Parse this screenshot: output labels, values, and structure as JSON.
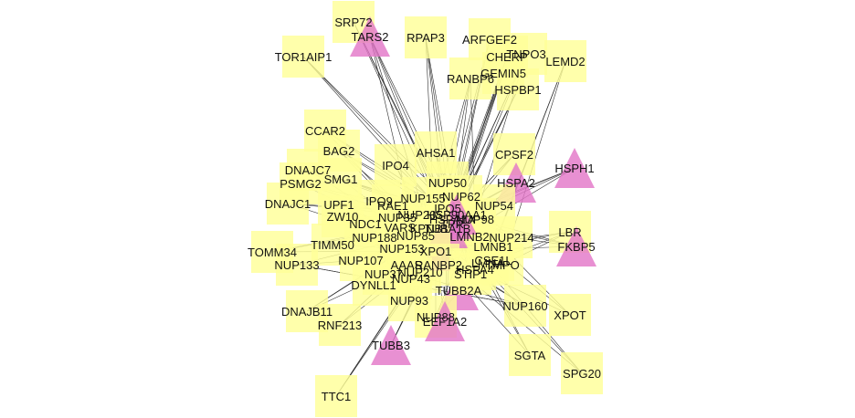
{
  "colors": {
    "background": "#ffffff",
    "node_square": "#ffff99",
    "node_triangle": "#e378c8",
    "edge": "#2b2b2b",
    "label": "#111111"
  },
  "nodes": [
    {
      "id": "SRP72",
      "shape": "square"
    },
    {
      "id": "TARS2",
      "shape": "triangle"
    },
    {
      "id": "RPAP3",
      "shape": "square"
    },
    {
      "id": "ARFGEF2",
      "shape": "square"
    },
    {
      "id": "TNPO3",
      "shape": "square"
    },
    {
      "id": "LEMD2",
      "shape": "square"
    },
    {
      "id": "CHERP",
      "shape": "square"
    },
    {
      "id": "GEMIN5",
      "shape": "square"
    },
    {
      "id": "TOR1AIP1",
      "shape": "square"
    },
    {
      "id": "RANBP6",
      "shape": "square"
    },
    {
      "id": "HSPBP1",
      "shape": "square"
    },
    {
      "id": "CCAR2",
      "shape": "square"
    },
    {
      "id": "BAG2",
      "shape": "square"
    },
    {
      "id": "AHSA1",
      "shape": "square"
    },
    {
      "id": "CPSF2",
      "shape": "square"
    },
    {
      "id": "HSPH1",
      "shape": "triangle"
    },
    {
      "id": "DNAJC7",
      "shape": "square"
    },
    {
      "id": "IPO4",
      "shape": "square"
    },
    {
      "id": "SMG1",
      "shape": "square"
    },
    {
      "id": "PSMG2",
      "shape": "square"
    },
    {
      "id": "HSPA2",
      "shape": "triangle"
    },
    {
      "id": "NUP155",
      "shape": "square"
    },
    {
      "id": "NUP54",
      "shape": "square"
    },
    {
      "id": "DNAJC1",
      "shape": "square"
    },
    {
      "id": "ZW10",
      "shape": "square"
    },
    {
      "id": "UPF1",
      "shape": "square"
    },
    {
      "id": "VARS",
      "shape": "triangle"
    },
    {
      "id": "LBR",
      "shape": "square"
    },
    {
      "id": "FKBP5",
      "shape": "triangle"
    },
    {
      "id": "TIMM50",
      "shape": "square"
    },
    {
      "id": "LMNB2",
      "shape": "square"
    },
    {
      "id": "NUP153",
      "shape": "square"
    },
    {
      "id": "TOMM34",
      "shape": "square"
    },
    {
      "id": "NUP133",
      "shape": "square"
    },
    {
      "id": "LMNA",
      "shape": "square"
    },
    {
      "id": "NUP210",
      "shape": "square"
    },
    {
      "id": "DYNLL1",
      "shape": "square"
    },
    {
      "id": "TUBB2A",
      "shape": "triangle"
    },
    {
      "id": "NUP93",
      "shape": "square"
    },
    {
      "id": "NUP160",
      "shape": "square"
    },
    {
      "id": "XPOT",
      "shape": "square"
    },
    {
      "id": "DNAJB11",
      "shape": "square"
    },
    {
      "id": "NUP88",
      "shape": "square"
    },
    {
      "id": "EEF1A2",
      "shape": "triangle"
    },
    {
      "id": "RNF213",
      "shape": "square"
    },
    {
      "id": "TUBB3",
      "shape": "triangle"
    },
    {
      "id": "SGTA",
      "shape": "square"
    },
    {
      "id": "SPG20",
      "shape": "square"
    },
    {
      "id": "TTC1",
      "shape": "square"
    },
    {
      "id": "XPO1",
      "shape": "triangle"
    },
    {
      "id": "NUP85",
      "shape": "square"
    },
    {
      "id": "NUP214",
      "shape": "square"
    },
    {
      "id": "NUP35",
      "shape": "square"
    },
    {
      "id": "NUP205",
      "shape": "square"
    },
    {
      "id": "NUP50",
      "shape": "square"
    },
    {
      "id": "NUP188",
      "shape": "square"
    },
    {
      "id": "NUP107",
      "shape": "square"
    },
    {
      "id": "NUP43",
      "shape": "square"
    },
    {
      "id": "NUP62",
      "shape": "square"
    },
    {
      "id": "NUP98",
      "shape": "square"
    },
    {
      "id": "TPR",
      "shape": "square"
    },
    {
      "id": "RAE1",
      "shape": "square"
    },
    {
      "id": "IPO9",
      "shape": "square"
    },
    {
      "id": "IPO5",
      "shape": "square"
    },
    {
      "id": "LMNB1",
      "shape": "square"
    },
    {
      "id": "HSPA4",
      "shape": "square"
    },
    {
      "id": "TUBA1B",
      "shape": "triangle"
    },
    {
      "id": "HSP90AA1",
      "shape": "triangle"
    },
    {
      "id": "HSPA1A",
      "shape": "triangle"
    },
    {
      "id": "STIP1",
      "shape": "square"
    },
    {
      "id": "TMPO",
      "shape": "square"
    },
    {
      "id": "KPNB1",
      "shape": "square"
    },
    {
      "id": "RANBP2",
      "shape": "square"
    },
    {
      "id": "AAAS",
      "shape": "square"
    },
    {
      "id": "NUP37",
      "shape": "square"
    },
    {
      "id": "NDC1",
      "shape": "square"
    },
    {
      "id": "CSE1L",
      "shape": "square"
    }
  ],
  "edges": [
    [
      "SRP72",
      "HSPA4"
    ],
    [
      "SRP72",
      "TUBA1B"
    ],
    [
      "SRP72",
      "HSPA1A"
    ],
    [
      "TARS2",
      "HSPA1A"
    ],
    [
      "TARS2",
      "NUP85"
    ],
    [
      "TARS2",
      "XPO1"
    ],
    [
      "TARS2",
      "HSP90AA1"
    ],
    [
      "TARS2",
      "TUBA1B"
    ],
    [
      "RPAP3",
      "HSP90AA1"
    ],
    [
      "RPAP3",
      "HSPA1A"
    ],
    [
      "RPAP3",
      "XPO1"
    ],
    [
      "RPAP3",
      "TUBA1B"
    ],
    [
      "ARFGEF2",
      "HSPA1A"
    ],
    [
      "ARFGEF2",
      "XPO1"
    ],
    [
      "ARFGEF2",
      "TUBA1B"
    ],
    [
      "TNPO3",
      "NUP98"
    ],
    [
      "TNPO3",
      "RANBP2"
    ],
    [
      "TNPO3",
      "NUP62"
    ],
    [
      "TNPO3",
      "XPO1"
    ],
    [
      "LEMD2",
      "LMNB1"
    ],
    [
      "LEMD2",
      "LMNA"
    ],
    [
      "LEMD2",
      "TMPO"
    ],
    [
      "CHERP",
      "XPO1"
    ],
    [
      "CHERP",
      "HSPA1A"
    ],
    [
      "CHERP",
      "TUBA1B"
    ],
    [
      "GEMIN5",
      "HSPA1A"
    ],
    [
      "GEMIN5",
      "XPO1"
    ],
    [
      "GEMIN5",
      "HSP90AA1"
    ],
    [
      "TOR1AIP1",
      "LMNB1"
    ],
    [
      "TOR1AIP1",
      "LMNA"
    ],
    [
      "TOR1AIP1",
      "TMPO"
    ],
    [
      "RANBP6",
      "XPO1"
    ],
    [
      "RANBP6",
      "HSPA1A"
    ],
    [
      "RANBP6",
      "KPNB1"
    ],
    [
      "RANBP6",
      "NUP98"
    ],
    [
      "HSPBP1",
      "HSPA1A"
    ],
    [
      "HSPBP1",
      "TUBA1B"
    ],
    [
      "HSPBP1",
      "HSP90AA1"
    ],
    [
      "CCAR2",
      "XPO1"
    ],
    [
      "CCAR2",
      "HSPA1A"
    ],
    [
      "CCAR2",
      "HSP90AA1"
    ],
    [
      "BAG2",
      "HSPA1A"
    ],
    [
      "BAG2",
      "HSP90AA1"
    ],
    [
      "BAG2",
      "HSPA4"
    ],
    [
      "BAG2",
      "XPO1"
    ],
    [
      "AHSA1",
      "HSP90AA1"
    ],
    [
      "AHSA1",
      "HSPA1A"
    ],
    [
      "AHSA1",
      "TUBA1B"
    ],
    [
      "CPSF2",
      "XPO1"
    ],
    [
      "CPSF2",
      "HSPA1A"
    ],
    [
      "CPSF2",
      "HSP90AA1"
    ],
    [
      "HSPH1",
      "HSPA1A"
    ],
    [
      "HSPH1",
      "HSP90AA1"
    ],
    [
      "HSPH1",
      "TUBA1B"
    ],
    [
      "HSPH1",
      "XPO1"
    ],
    [
      "DNAJC7",
      "HSPA1A"
    ],
    [
      "DNAJC7",
      "HSP90AA1"
    ],
    [
      "DNAJC7",
      "XPO1"
    ],
    [
      "IPO4",
      "XPO1"
    ],
    [
      "IPO4",
      "HSPA1A"
    ],
    [
      "IPO4",
      "KPNB1"
    ],
    [
      "SMG1",
      "XPO1"
    ],
    [
      "SMG1",
      "HSPA1A"
    ],
    [
      "SMG1",
      "HSP90AA1"
    ],
    [
      "PSMG2",
      "HSPA1A"
    ],
    [
      "PSMG2",
      "XPO1"
    ],
    [
      "PSMG2",
      "TUBA1B"
    ],
    [
      "HSPA2",
      "HSP90AA1"
    ],
    [
      "HSPA2",
      "HSPA1A"
    ],
    [
      "HSPA2",
      "XPO1"
    ],
    [
      "NUP155",
      "NUP93"
    ],
    [
      "NUP155",
      "NUP98"
    ],
    [
      "NUP155",
      "NUP62"
    ],
    [
      "NUP155",
      "XPO1"
    ],
    [
      "NUP54",
      "NUP62"
    ],
    [
      "NUP54",
      "NUP98"
    ],
    [
      "NUP54",
      "XPO1"
    ],
    [
      "DNAJC1",
      "HSPA1A"
    ],
    [
      "DNAJC1",
      "HSP90AA1"
    ],
    [
      "DNAJC1",
      "XPO1"
    ],
    [
      "ZW10",
      "XPO1"
    ],
    [
      "ZW10",
      "HSPA1A"
    ],
    [
      "ZW10",
      "TUBA1B"
    ],
    [
      "UPF1",
      "XPO1"
    ],
    [
      "UPF1",
      "HSPA1A"
    ],
    [
      "VARS",
      "HSPA1A"
    ],
    [
      "VARS",
      "XPO1"
    ],
    [
      "VARS",
      "HSP90AA1"
    ],
    [
      "LBR",
      "LMNB1"
    ],
    [
      "LBR",
      "LMNA"
    ],
    [
      "LBR",
      "TMPO"
    ],
    [
      "LBR",
      "XPO1"
    ],
    [
      "FKBP5",
      "HSP90AA1"
    ],
    [
      "FKBP5",
      "HSPA1A"
    ],
    [
      "FKBP5",
      "XPO1"
    ],
    [
      "FKBP5",
      "TUBA1B"
    ],
    [
      "TIMM50",
      "HSPA1A"
    ],
    [
      "TIMM50",
      "XPO1"
    ],
    [
      "TIMM50",
      "HSP90AA1"
    ],
    [
      "LMNB2",
      "LMNA"
    ],
    [
      "LMNB2",
      "LMNB1"
    ],
    [
      "LMNB2",
      "TMPO"
    ],
    [
      "NUP153",
      "NUP98"
    ],
    [
      "NUP153",
      "TPR"
    ],
    [
      "NUP153",
      "XPO1"
    ],
    [
      "TOMM34",
      "HSP90AA1"
    ],
    [
      "TOMM34",
      "HSPA1A"
    ],
    [
      "TOMM34",
      "XPO1"
    ],
    [
      "NUP133",
      "NUP107"
    ],
    [
      "NUP133",
      "NUP85"
    ],
    [
      "NUP133",
      "NUP160"
    ],
    [
      "LMNA",
      "LMNB1"
    ],
    [
      "LMNA",
      "TMPO"
    ],
    [
      "NUP210",
      "NUP62"
    ],
    [
      "NUP210",
      "NUP93"
    ],
    [
      "NUP210",
      "NUP98"
    ],
    [
      "DYNLL1",
      "TUBA1B"
    ],
    [
      "DYNLL1",
      "HSPA1A"
    ],
    [
      "DYNLL1",
      "XPO1"
    ],
    [
      "TUBB2A",
      "TUBA1B"
    ],
    [
      "TUBB2A",
      "HSPA1A"
    ],
    [
      "TUBB2A",
      "HSP90AA1"
    ],
    [
      "NUP93",
      "NUP205"
    ],
    [
      "NUP93",
      "NUP188"
    ],
    [
      "NUP93",
      "NUP62"
    ],
    [
      "NUP160",
      "NUP107"
    ],
    [
      "NUP160",
      "NUP85"
    ],
    [
      "NUP160",
      "XPO1"
    ],
    [
      "NUP160",
      "NUP133"
    ],
    [
      "XPOT",
      "XPO1"
    ],
    [
      "XPOT",
      "NUP98"
    ],
    [
      "XPOT",
      "HSPA1A"
    ],
    [
      "DNAJB11",
      "HSPA1A"
    ],
    [
      "DNAJB11",
      "HSP90AA1"
    ],
    [
      "DNAJB11",
      "XPO1"
    ],
    [
      "NUP88",
      "NUP214"
    ],
    [
      "NUP88",
      "NUP98"
    ],
    [
      "NUP88",
      "XPO1"
    ],
    [
      "EEF1A2",
      "HSPA1A"
    ],
    [
      "EEF1A2",
      "XPO1"
    ],
    [
      "EEF1A2",
      "TUBA1B"
    ],
    [
      "RNF213",
      "HSPA1A"
    ],
    [
      "RNF213",
      "XPO1"
    ],
    [
      "RNF213",
      "HSP90AA1"
    ],
    [
      "TUBB3",
      "TUBA1B"
    ],
    [
      "TUBB3",
      "HSPA1A"
    ],
    [
      "TUBB3",
      "XPO1"
    ],
    [
      "TUBB3",
      "HSP90AA1"
    ],
    [
      "SGTA",
      "HSPA1A"
    ],
    [
      "SGTA",
      "HSP90AA1"
    ],
    [
      "SGTA",
      "XPO1"
    ],
    [
      "SPG20",
      "HSPA1A"
    ],
    [
      "SPG20",
      "XPO1"
    ],
    [
      "SPG20",
      "TUBA1B"
    ],
    [
      "TTC1",
      "HSPA1A"
    ],
    [
      "TTC1",
      "HSP90AA1"
    ],
    [
      "TTC1",
      "XPO1"
    ],
    [
      "XPO1",
      "NUP214"
    ],
    [
      "XPO1",
      "NUP98"
    ],
    [
      "XPO1",
      "RANBP2"
    ],
    [
      "XPO1",
      "KPNB1"
    ],
    [
      "XPO1",
      "HSPA1A"
    ],
    [
      "XPO1",
      "HSP90AA1"
    ],
    [
      "NUP85",
      "NUP107"
    ],
    [
      "NUP85",
      "NUP43"
    ],
    [
      "NUP35",
      "NUP93"
    ],
    [
      "NUP35",
      "NUP155"
    ],
    [
      "NUP205",
      "NUP188"
    ],
    [
      "NUP50",
      "NUP153"
    ],
    [
      "NUP50",
      "KPNB1"
    ],
    [
      "NUP62",
      "NUP98"
    ],
    [
      "NUP62",
      "NUP214"
    ],
    [
      "NUP98",
      "RAE1"
    ],
    [
      "NUP98",
      "TPR"
    ],
    [
      "TPR",
      "NUP153"
    ],
    [
      "RAE1",
      "NUP98"
    ],
    [
      "IPO9",
      "XPO1"
    ],
    [
      "IPO9",
      "KPNB1"
    ],
    [
      "IPO5",
      "KPNB1"
    ],
    [
      "IPO5",
      "XPO1"
    ],
    [
      "LMNB1",
      "TMPO"
    ],
    [
      "HSPA4",
      "HSPA1A"
    ],
    [
      "HSPA4",
      "HSP90AA1"
    ],
    [
      "TUBA1B",
      "HSPA1A"
    ],
    [
      "TUBA1B",
      "HSP90AA1"
    ],
    [
      "HSP90AA1",
      "HSPA1A"
    ],
    [
      "STIP1",
      "HSP90AA1"
    ],
    [
      "STIP1",
      "HSPA1A"
    ],
    [
      "KPNB1",
      "NUP153"
    ],
    [
      "KPNB1",
      "RANBP2"
    ],
    [
      "RANBP2",
      "NUP214"
    ],
    [
      "AAAS",
      "NUP93"
    ],
    [
      "AAAS",
      "NUP155"
    ],
    [
      "NUP37",
      "NUP107"
    ],
    [
      "NUP37",
      "NUP85"
    ],
    [
      "NDC1",
      "NUP93"
    ],
    [
      "NDC1",
      "NUP155"
    ],
    [
      "CSE1L",
      "KPNB1"
    ],
    [
      "CSE1L",
      "XPO1"
    ],
    [
      "NUP43",
      "NUP107"
    ],
    [
      "NUP214",
      "NUP98"
    ],
    [
      "NUP188",
      "NUP62"
    ]
  ]
}
